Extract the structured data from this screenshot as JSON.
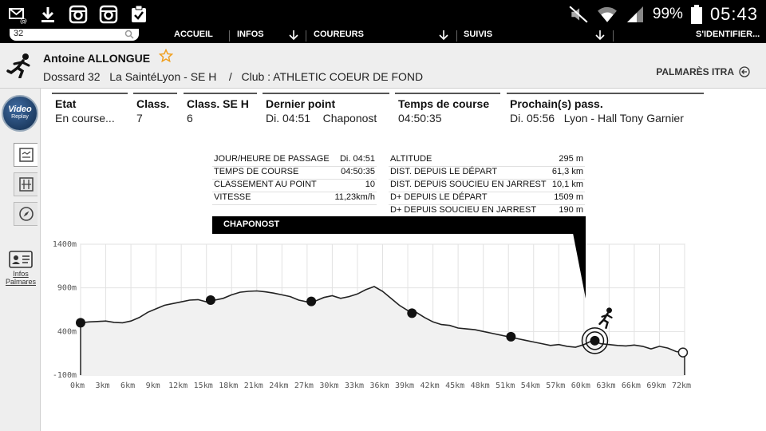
{
  "status_bar": {
    "battery": "99%",
    "time": "05:43",
    "icons": [
      "mail-icon",
      "download-icon",
      "instagram-icon",
      "instagram-icon",
      "clipboard-check-icon",
      "mute-icon",
      "wifi-icon",
      "signal-icon",
      "battery-icon"
    ]
  },
  "nav": {
    "search_value": "32",
    "items": [
      "ACCUEIL",
      "INFOS",
      "COUREURS",
      "SUIVIS",
      "S'IDENTIFIER..."
    ]
  },
  "header": {
    "name": "Antoine ALLONGUE",
    "line": "Dossard 32   La SaintéLyon - SE H    /   Club : ATHLETIC COEUR DE FOND",
    "palmares": "PALMARÈS ITRA"
  },
  "sidebar": {
    "video_line1": "Video",
    "video_line2": "Replay",
    "infos_line1": "Infos",
    "infos_line2": "Palmares"
  },
  "summary": [
    {
      "label": "Etat",
      "value": "En course..."
    },
    {
      "label": "Class.",
      "value": "7"
    },
    {
      "label": "Class. SE H",
      "value": "6"
    },
    {
      "label": "Dernier point",
      "value": "Di. 04:51    Chaponost"
    },
    {
      "label": "Temps de course",
      "value": "04:50:35"
    },
    {
      "label": "Prochain(s) pass.",
      "value": "Di. 05:56   Lyon - Hall Tony Garnier"
    }
  ],
  "popup": {
    "left": [
      {
        "k": "JOUR/HEURE DE PASSAGE",
        "v": "Di. 04:51"
      },
      {
        "k": "TEMPS DE COURSE",
        "v": "04:50:35"
      },
      {
        "k": "CLASSEMENT AU POINT",
        "v": "10"
      },
      {
        "k": "VITESSE",
        "v": "11,23km/h"
      }
    ],
    "right": [
      {
        "k": "ALTITUDE",
        "v": "295 m"
      },
      {
        "k": "DIST. DEPUIS LE DÉPART",
        "v": "61,3 km"
      },
      {
        "k": "DIST. DEPUIS SOUCIEU EN JARREST",
        "v": "10,1 km"
      },
      {
        "k": "D+ DEPUIS LE DÉPART",
        "v": "1509 m"
      },
      {
        "k": "D+ DEPUIS SOUCIEU EN JARREST",
        "v": "190 m"
      }
    ],
    "place": "CHAPONOST"
  },
  "chart_data": {
    "type": "area",
    "ylim": [
      -100,
      1400
    ],
    "xlim": [
      0,
      72
    ],
    "y_ticks": [
      "1400m",
      "900m",
      "400m",
      "-100m"
    ],
    "x_ticks": [
      "0km",
      "3km",
      "6km",
      "9km",
      "12km",
      "15km",
      "18km",
      "21km",
      "24km",
      "27km",
      "30km",
      "33km",
      "36km",
      "39km",
      "42km",
      "45km",
      "48km",
      "51km",
      "54km",
      "57km",
      "60km",
      "63km",
      "66km",
      "69km",
      "72km"
    ],
    "profile_km": [
      0,
      1,
      2,
      3,
      4,
      5,
      6,
      7,
      8,
      9,
      10,
      11,
      12,
      13,
      14,
      15,
      16,
      17,
      18,
      19,
      20,
      21,
      22,
      23,
      24,
      25,
      26,
      27,
      28,
      29,
      30,
      31,
      32,
      33,
      34,
      35,
      36,
      37,
      38,
      39,
      40,
      41,
      42,
      43,
      44,
      45,
      46,
      47,
      48,
      49,
      50,
      51,
      52,
      53,
      54,
      55,
      56,
      57,
      58,
      59,
      60,
      61,
      62,
      63,
      64,
      65,
      66,
      67,
      68,
      69,
      70,
      71,
      72
    ],
    "profile_alt": [
      500,
      510,
      515,
      520,
      505,
      500,
      520,
      560,
      620,
      660,
      700,
      720,
      740,
      760,
      765,
      740,
      760,
      780,
      820,
      850,
      860,
      865,
      855,
      840,
      820,
      800,
      760,
      740,
      750,
      790,
      810,
      780,
      800,
      830,
      880,
      915,
      860,
      780,
      700,
      640,
      620,
      560,
      510,
      480,
      470,
      440,
      430,
      420,
      400,
      380,
      360,
      340,
      320,
      300,
      280,
      260,
      240,
      250,
      230,
      220,
      250,
      295,
      260,
      250,
      240,
      235,
      245,
      230,
      200,
      230,
      210,
      170,
      160
    ],
    "checkpoints": [
      {
        "km": 0,
        "alt": 500
      },
      {
        "km": 15.5,
        "alt": 760
      },
      {
        "km": 27.5,
        "alt": 745
      },
      {
        "km": 39.5,
        "alt": 610
      },
      {
        "km": 51.3,
        "alt": 340
      },
      {
        "km": 61.3,
        "alt": 295
      },
      {
        "km": 71.8,
        "alt": 160
      }
    ],
    "current_km": 61.3,
    "current_alt": 295
  }
}
